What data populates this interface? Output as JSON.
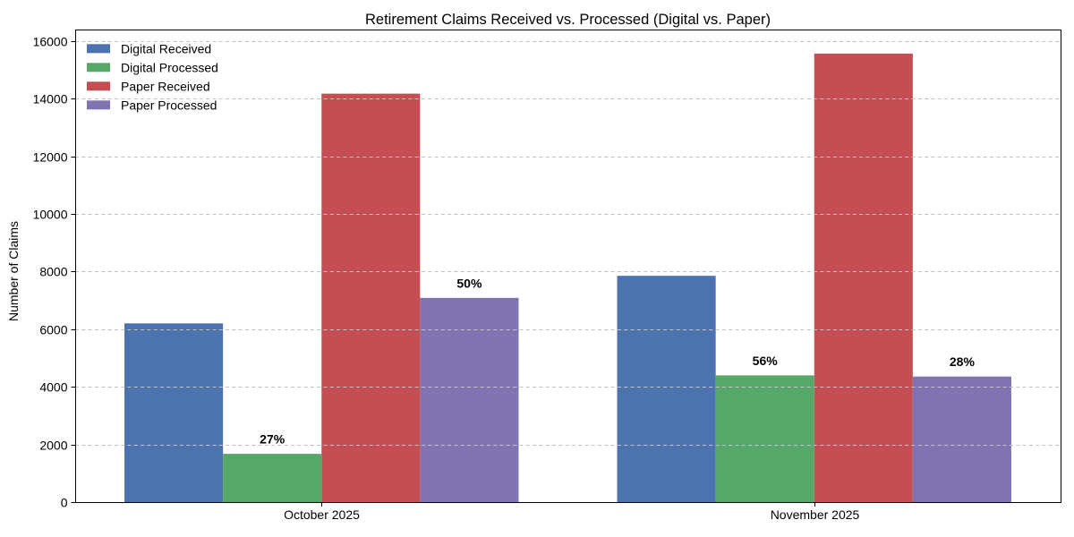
{
  "chart_data": {
    "type": "bar",
    "title": "Retirement Claims Received vs. Processed (Digital vs. Paper)",
    "ylabel": "Number of Claims",
    "xlabel": "",
    "categories": [
      "October 2025",
      "November 2025"
    ],
    "series": [
      {
        "name": "Digital Received",
        "color": "#4C72B0",
        "values": [
          6200,
          7850
        ],
        "labels": [
          "",
          ""
        ]
      },
      {
        "name": "Digital Processed",
        "color": "#55A868",
        "values": [
          1674,
          4396
        ],
        "labels": [
          "27%",
          "56%"
        ]
      },
      {
        "name": "Paper Received",
        "color": "#C44E52",
        "values": [
          14170,
          15560
        ],
        "labels": [
          "",
          ""
        ]
      },
      {
        "name": "Paper Processed",
        "color": "#8172B2",
        "values": [
          7085,
          4357
        ],
        "labels": [
          "50%",
          "28%"
        ]
      }
    ],
    "ylim": [
      0,
      16000
    ],
    "ytick_step": 2000,
    "grid": "horizontal-dashed",
    "grid_color": "#c2c2c2",
    "legend_position": "upper-left",
    "axis_color": "#000000"
  }
}
